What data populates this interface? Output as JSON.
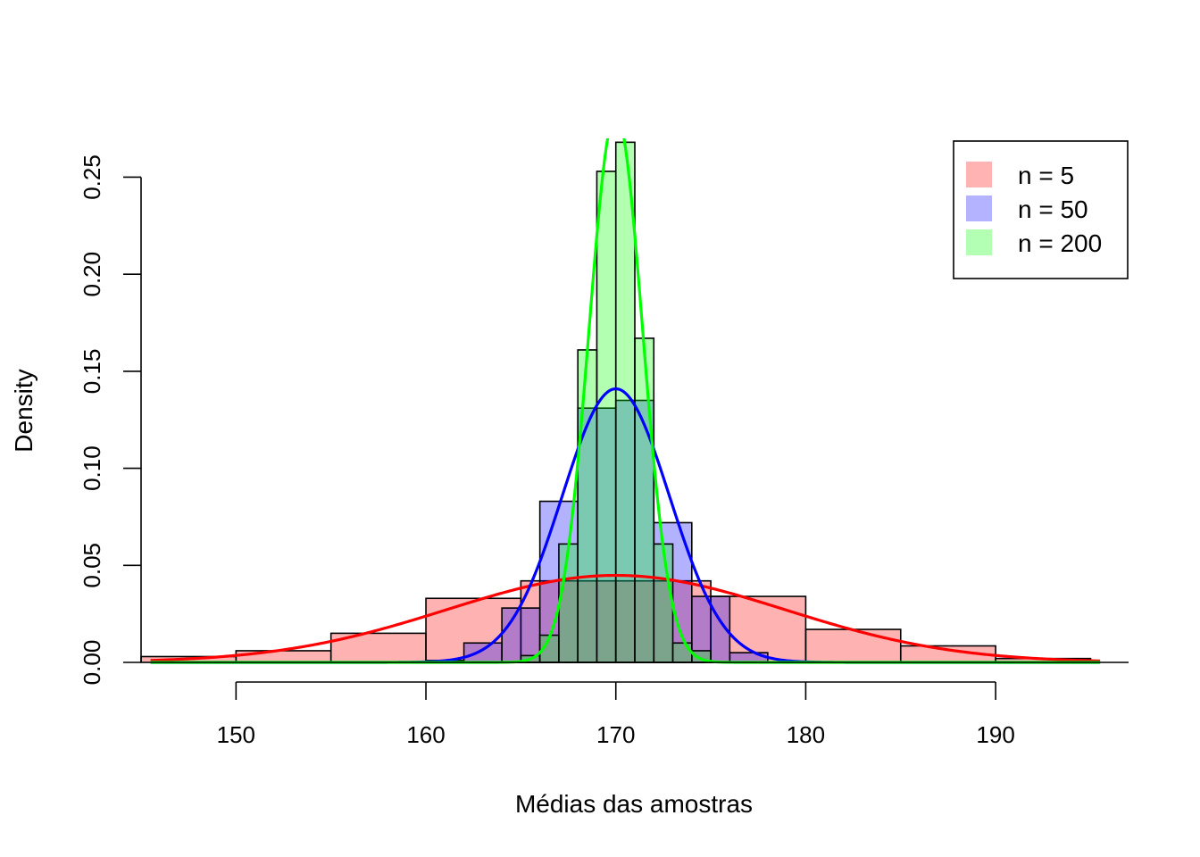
{
  "chart_data": {
    "type": "bar",
    "title": "",
    "xlabel": "Médias das amostras",
    "ylabel": "Density",
    "xlim": [
      145,
      197
    ],
    "ylim": [
      0,
      0.27
    ],
    "x_ticks": [
      150,
      160,
      170,
      180,
      190
    ],
    "x_tick_labels": [
      "150",
      "160",
      "170",
      "180",
      "190"
    ],
    "y_ticks": [
      0,
      0.05,
      0.1,
      0.15,
      0.2,
      0.25
    ],
    "y_tick_labels": [
      "0.00",
      "0.05",
      "0.10",
      "0.15",
      "0.20",
      "0.25"
    ],
    "legend": {
      "placement": "top-right",
      "entries": [
        {
          "label": "n = 5",
          "color": "#ffb3b3"
        },
        {
          "label": "n = 50",
          "color": "#b3b3ff"
        },
        {
          "label": "n = 200",
          "color": "#b3ffb3"
        }
      ]
    },
    "histograms": [
      {
        "label": "n = 5",
        "fill": "#ff0000",
        "fill_opacity": 0.3,
        "breaks": [
          145,
          150,
          155,
          160,
          165,
          170,
          175,
          180,
          185,
          190,
          195
        ],
        "density": [
          0.003,
          0.006,
          0.015,
          0.033,
          0.042,
          0.042,
          0.034,
          0.017,
          0.0085,
          0.002
        ]
      },
      {
        "label": "n = 50",
        "fill": "#0000ff",
        "fill_opacity": 0.3,
        "breaks": [
          160,
          162,
          164,
          166,
          168,
          170,
          172,
          174,
          176,
          178
        ],
        "density": [
          0.001,
          0.01,
          0.028,
          0.083,
          0.131,
          0.135,
          0.072,
          0.034,
          0.005
        ]
      },
      {
        "label": "n = 200",
        "fill": "#00ff00",
        "fill_opacity": 0.3,
        "breaks": [
          165,
          166,
          167,
          168,
          169,
          170,
          171,
          172,
          173,
          174,
          175
        ],
        "density": [
          0.0035,
          0.014,
          0.061,
          0.161,
          0.253,
          0.268,
          0.167,
          0.061,
          0.01,
          0.006
        ]
      }
    ],
    "density_curves": [
      {
        "label": "n = 5",
        "color": "#ff0000",
        "mean": 170,
        "sd": 8.9,
        "range": [
          145.5,
          195.5
        ]
      },
      {
        "label": "n = 50",
        "color": "#0000ff",
        "mean": 170,
        "sd": 2.83,
        "range": [
          145.5,
          195.5
        ]
      },
      {
        "label": "n = 200",
        "color": "#00ff00",
        "mean": 170,
        "sd": 1.41,
        "range": [
          145.5,
          195.5
        ]
      }
    ]
  }
}
